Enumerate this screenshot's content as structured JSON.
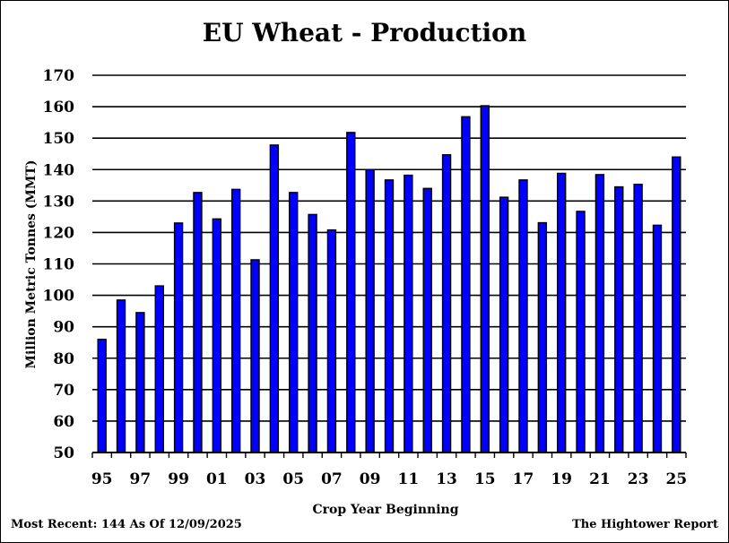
{
  "chart_data": {
    "type": "bar",
    "title": "EU Wheat - Production",
    "xlabel": "Crop Year Beginning",
    "ylabel": "Million Metric Tonnes (MMT)",
    "ylim": [
      50,
      170
    ],
    "yticks": [
      50,
      60,
      70,
      80,
      90,
      100,
      110,
      120,
      130,
      140,
      150,
      160,
      170
    ],
    "grid": true,
    "categories": [
      "95",
      "96",
      "97",
      "98",
      "99",
      "00",
      "01",
      "02",
      "03",
      "04",
      "05",
      "06",
      "07",
      "08",
      "09",
      "10",
      "11",
      "12",
      "13",
      "14",
      "15",
      "16",
      "17",
      "18",
      "19",
      "20",
      "21",
      "22",
      "23",
      "24",
      "25"
    ],
    "x_tick_labels": [
      "95",
      "97",
      "99",
      "01",
      "03",
      "05",
      "07",
      "09",
      "11",
      "13",
      "15",
      "17",
      "19",
      "21",
      "23",
      "25"
    ],
    "values": [
      86,
      98.5,
      94.5,
      103,
      123,
      132.7,
      124.3,
      133.7,
      111.3,
      147.8,
      132.7,
      125.7,
      120.8,
      151.8,
      140,
      136.7,
      138.2,
      134,
      144.7,
      156.8,
      160.3,
      131.2,
      136.7,
      123.1,
      138.8,
      126.7,
      138.4,
      134.5,
      135.3,
      122.3,
      144
    ],
    "bar_color": "#0000ff",
    "bar_edge_color": "#000000"
  },
  "footer": {
    "left": "Most Recent: 144 As Of 12/09/2025",
    "right": "The Hightower Report"
  }
}
